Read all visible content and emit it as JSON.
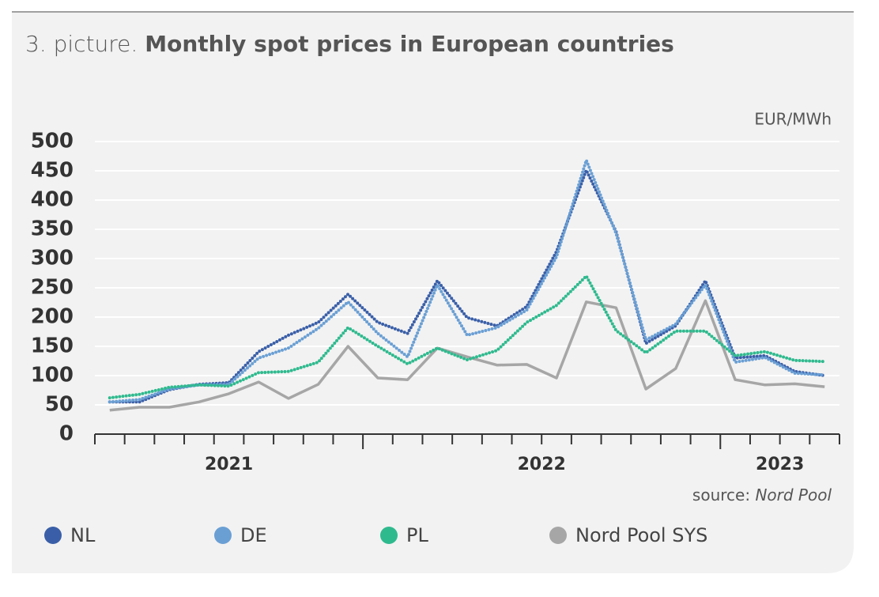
{
  "chart_data": {
    "type": "line",
    "title_prefix": "3. picture.",
    "title": "Monthly spot prices in European countries",
    "unit_label": "EUR/MWh",
    "source_prefix": "source:",
    "source": "Nord Pool",
    "categories": [
      null,
      null,
      null,
      null,
      null,
      null,
      null,
      null,
      null,
      null,
      null,
      null,
      null,
      null,
      null,
      null,
      null,
      null,
      null,
      null,
      null,
      null,
      null,
      null,
      null
    ],
    "year_groups": [
      {
        "label": "2021",
        "count": 9
      },
      {
        "label": "2022",
        "count": 12
      },
      {
        "label": "2023",
        "count": 4
      }
    ],
    "ylim": [
      0,
      500
    ],
    "yticks": [
      0,
      50,
      100,
      150,
      200,
      250,
      300,
      350,
      400,
      450,
      500
    ],
    "grid": true,
    "series": [
      {
        "name": "NL",
        "color": "#3a5fa8",
        "style": "dotted",
        "values": [
          55,
          55,
          76,
          85,
          88,
          141,
          169,
          191,
          239,
          191,
          172,
          262,
          199,
          185,
          218,
          312,
          451,
          346,
          155,
          185,
          262,
          130,
          134,
          107,
          100
        ]
      },
      {
        "name": "DE",
        "color": "#6a9fd4",
        "style": "dotted",
        "values": [
          55,
          59,
          77,
          84,
          85,
          130,
          147,
          181,
          226,
          172,
          132,
          255,
          169,
          182,
          212,
          303,
          468,
          343,
          161,
          188,
          255,
          123,
          131,
          104,
          101
        ]
      },
      {
        "name": "PL",
        "color": "#2fba8e",
        "style": "dotted",
        "values": [
          62,
          68,
          80,
          84,
          82,
          105,
          107,
          123,
          182,
          150,
          120,
          147,
          127,
          143,
          191,
          220,
          270,
          177,
          139,
          176,
          176,
          134,
          141,
          126,
          124
        ]
      },
      {
        "name": "Nord Pool SYS",
        "color": "#a6a6a6",
        "style": "solid",
        "values": [
          41,
          46,
          46,
          55,
          69,
          89,
          61,
          85,
          150,
          96,
          93,
          147,
          132,
          118,
          119,
          96,
          226,
          216,
          77,
          112,
          228,
          93,
          84,
          86,
          81
        ]
      }
    ]
  }
}
